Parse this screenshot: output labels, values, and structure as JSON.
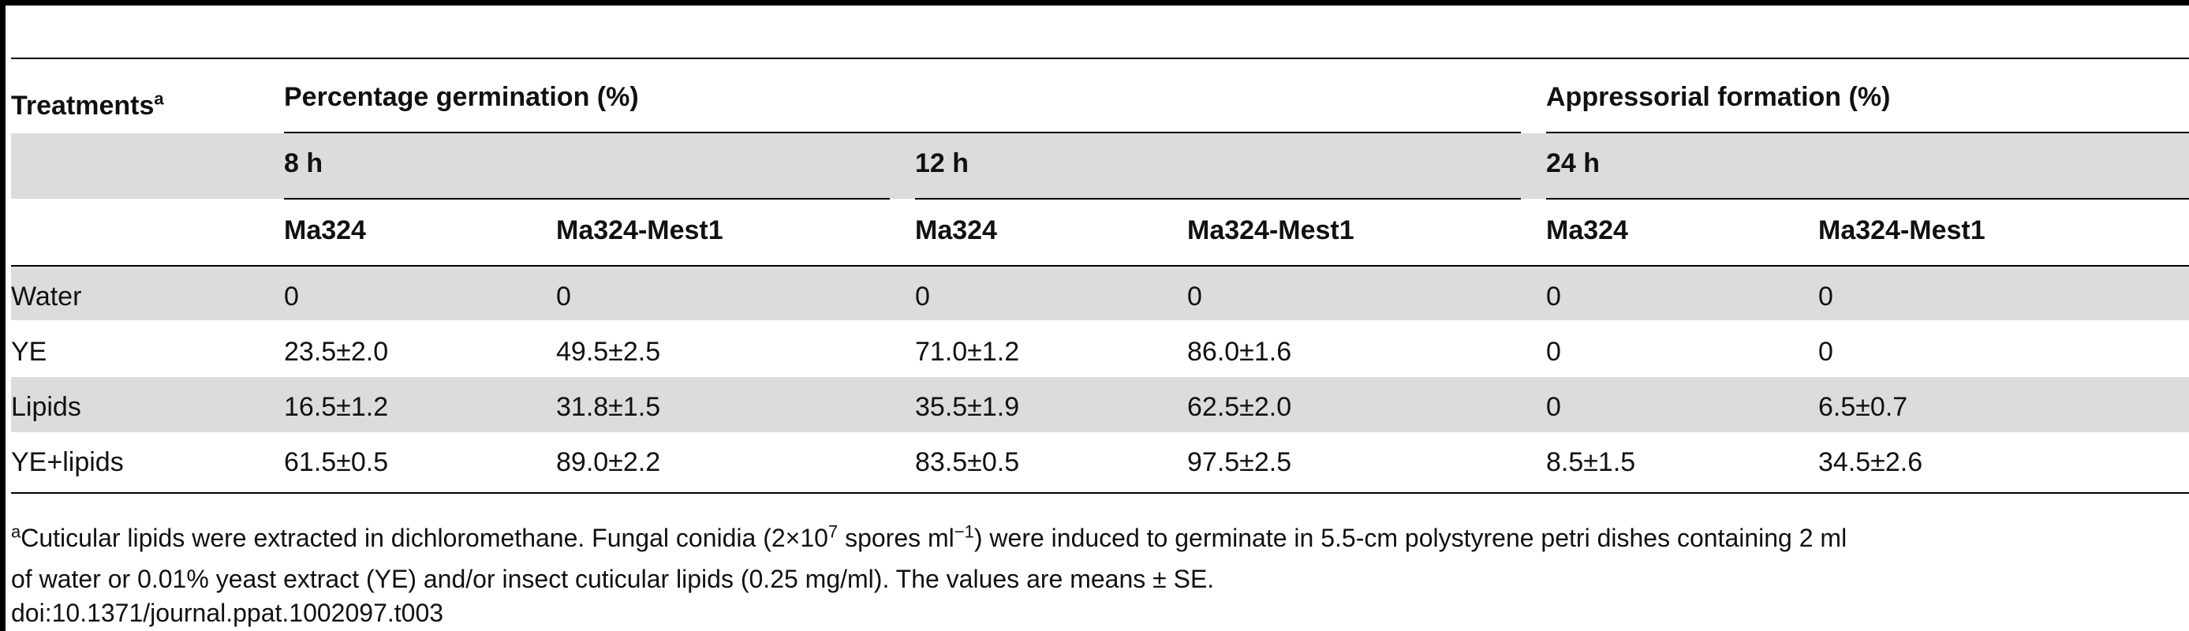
{
  "table": {
    "header": {
      "treatments": "Treatments",
      "treatments_sup": "a",
      "group_germination": "Percentage germination (%)",
      "group_appressorial": "Appressorial formation (%)",
      "time_8h": "8 h",
      "time_12h": "12 h",
      "time_24h": "24 h",
      "strains": [
        "Ma324",
        "Ma324-Mest1",
        "Ma324",
        "Ma324-Mest1",
        "Ma324",
        "Ma324-Mest1"
      ]
    },
    "rows": [
      {
        "treatment": "Water",
        "values": [
          "0",
          "0",
          "0",
          "0",
          "0",
          "0"
        ]
      },
      {
        "treatment": "YE",
        "values": [
          "23.5±2.0",
          "49.5±2.5",
          "71.0±1.2",
          "86.0±1.6",
          "0",
          "0"
        ]
      },
      {
        "treatment": "Lipids",
        "values": [
          "16.5±1.2",
          "31.8±1.5",
          "35.5±1.9",
          "62.5±2.0",
          "0",
          "6.5±0.7"
        ]
      },
      {
        "treatment": "YE+lipids",
        "values": [
          "61.5±0.5",
          "89.0±2.2",
          "83.5±0.5",
          "97.5±2.5",
          "8.5±1.5",
          "34.5±2.6"
        ]
      }
    ]
  },
  "footnote": {
    "marker": "a",
    "line1_part1": "Cuticular lipids were extracted in dichloromethane. Fungal conidia (2×10",
    "line1_exp": "7",
    "line1_part2": " spores ml",
    "line1_exp2": "−1",
    "line1_part3": ") were induced to germinate in 5.5-cm polystyrene petri dishes containing 2 ml",
    "line2": " of water or 0.01% yeast extract (YE) and/or insect cuticular lipids (0.25 mg/ml). The values are means ± SE.",
    "doi": "doi:10.1371/journal.ppat.1002097.t003"
  }
}
